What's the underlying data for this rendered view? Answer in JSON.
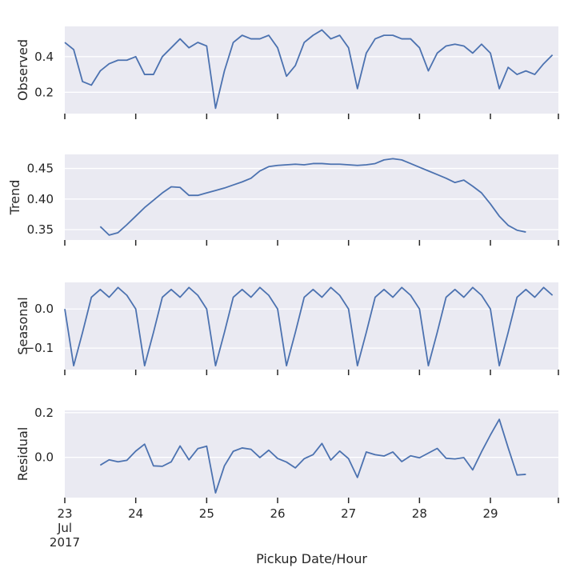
{
  "chart_data": [
    {
      "type": "line",
      "y_label": "Observed",
      "x": [
        "2017-07-23T00:00",
        "2017-07-23T03:00",
        "2017-07-23T06:00",
        "2017-07-23T09:00",
        "2017-07-23T12:00",
        "2017-07-23T15:00",
        "2017-07-23T18:00",
        "2017-07-23T21:00",
        "2017-07-24T00:00",
        "2017-07-24T03:00",
        "2017-07-24T06:00",
        "2017-07-24T09:00",
        "2017-07-24T12:00",
        "2017-07-24T15:00",
        "2017-07-24T18:00",
        "2017-07-24T21:00",
        "2017-07-25T00:00",
        "2017-07-25T03:00",
        "2017-07-25T06:00",
        "2017-07-25T09:00",
        "2017-07-25T12:00",
        "2017-07-25T15:00",
        "2017-07-25T18:00",
        "2017-07-25T21:00",
        "2017-07-26T00:00",
        "2017-07-26T03:00",
        "2017-07-26T06:00",
        "2017-07-26T09:00",
        "2017-07-26T12:00",
        "2017-07-26T15:00",
        "2017-07-26T18:00",
        "2017-07-26T21:00",
        "2017-07-27T00:00",
        "2017-07-27T03:00",
        "2017-07-27T06:00",
        "2017-07-27T09:00",
        "2017-07-27T12:00",
        "2017-07-27T15:00",
        "2017-07-27T18:00",
        "2017-07-27T21:00",
        "2017-07-28T00:00",
        "2017-07-28T03:00",
        "2017-07-28T06:00",
        "2017-07-28T09:00",
        "2017-07-28T12:00",
        "2017-07-28T15:00",
        "2017-07-28T18:00",
        "2017-07-28T21:00",
        "2017-07-29T00:00",
        "2017-07-29T03:00",
        "2017-07-29T06:00",
        "2017-07-29T09:00",
        "2017-07-29T12:00",
        "2017-07-29T15:00",
        "2017-07-29T18:00",
        "2017-07-29T21:00"
      ],
      "values": [
        0.48,
        0.44,
        0.26,
        0.24,
        0.32,
        0.36,
        0.38,
        0.38,
        0.4,
        0.3,
        0.3,
        0.4,
        0.45,
        0.5,
        0.45,
        0.48,
        0.46,
        0.11,
        0.32,
        0.48,
        0.52,
        0.5,
        0.5,
        0.52,
        0.45,
        0.29,
        0.35,
        0.48,
        0.52,
        0.55,
        0.5,
        0.52,
        0.45,
        0.22,
        0.42,
        0.5,
        0.52,
        0.52,
        0.5,
        0.5,
        0.45,
        0.32,
        0.42,
        0.46,
        0.47,
        0.46,
        0.42,
        0.47,
        0.42,
        0.22,
        0.34,
        0.3,
        0.32,
        0.3,
        0.36,
        0.41
      ],
      "color": "#4c72b0",
      "xlim": [
        "2017-07-23T00:00",
        "2017-07-29T23:00"
      ],
      "ylim": [
        0.08,
        0.57
      ],
      "yticks": [
        0.2,
        0.4
      ],
      "grid": true
    },
    {
      "type": "line",
      "y_label": "Trend",
      "x": [
        "2017-07-23T00:00",
        "2017-07-23T03:00",
        "2017-07-23T06:00",
        "2017-07-23T09:00",
        "2017-07-23T12:00",
        "2017-07-23T15:00",
        "2017-07-23T18:00",
        "2017-07-23T21:00",
        "2017-07-24T00:00",
        "2017-07-24T03:00",
        "2017-07-24T06:00",
        "2017-07-24T09:00",
        "2017-07-24T12:00",
        "2017-07-24T15:00",
        "2017-07-24T18:00",
        "2017-07-24T21:00",
        "2017-07-25T00:00",
        "2017-07-25T03:00",
        "2017-07-25T06:00",
        "2017-07-25T09:00",
        "2017-07-25T12:00",
        "2017-07-25T15:00",
        "2017-07-25T18:00",
        "2017-07-25T21:00",
        "2017-07-26T00:00",
        "2017-07-26T03:00",
        "2017-07-26T06:00",
        "2017-07-26T09:00",
        "2017-07-26T12:00",
        "2017-07-26T15:00",
        "2017-07-26T18:00",
        "2017-07-26T21:00",
        "2017-07-27T00:00",
        "2017-07-27T03:00",
        "2017-07-27T06:00",
        "2017-07-27T09:00",
        "2017-07-27T12:00",
        "2017-07-27T15:00",
        "2017-07-27T18:00",
        "2017-07-27T21:00",
        "2017-07-28T00:00",
        "2017-07-28T03:00",
        "2017-07-28T06:00",
        "2017-07-28T09:00",
        "2017-07-28T12:00",
        "2017-07-28T15:00",
        "2017-07-28T18:00",
        "2017-07-28T21:00",
        "2017-07-29T00:00",
        "2017-07-29T03:00",
        "2017-07-29T06:00",
        "2017-07-29T09:00",
        "2017-07-29T12:00",
        "2017-07-29T15:00",
        "2017-07-29T18:00",
        "2017-07-29T21:00"
      ],
      "values": [
        null,
        null,
        null,
        null,
        0.355,
        0.341,
        0.345,
        0.358,
        0.372,
        0.386,
        0.398,
        0.41,
        0.42,
        0.419,
        0.406,
        0.406,
        0.41,
        0.414,
        0.418,
        0.423,
        0.428,
        0.434,
        0.446,
        0.453,
        0.455,
        0.456,
        0.457,
        0.456,
        0.458,
        0.458,
        0.457,
        0.457,
        0.456,
        0.455,
        0.456,
        0.458,
        0.464,
        0.466,
        0.464,
        0.458,
        0.452,
        0.446,
        0.44,
        0.434,
        0.427,
        0.431,
        0.421,
        0.41,
        0.392,
        0.372,
        0.357,
        0.349,
        0.346,
        null,
        null,
        null
      ],
      "color": "#4c72b0",
      "xlim": [
        "2017-07-23T00:00",
        "2017-07-29T23:00"
      ],
      "ylim": [
        0.333,
        0.473
      ],
      "yticks": [
        0.35,
        {
          "value": 0.4,
          "label": "0.40"
        },
        0.45
      ],
      "grid": true
    },
    {
      "type": "line",
      "y_label": "Seasonal",
      "x": [
        "2017-07-23T00:00",
        "2017-07-23T03:00",
        "2017-07-23T06:00",
        "2017-07-23T09:00",
        "2017-07-23T12:00",
        "2017-07-23T15:00",
        "2017-07-23T18:00",
        "2017-07-23T21:00",
        "2017-07-24T00:00",
        "2017-07-24T03:00",
        "2017-07-24T06:00",
        "2017-07-24T09:00",
        "2017-07-24T12:00",
        "2017-07-24T15:00",
        "2017-07-24T18:00",
        "2017-07-24T21:00",
        "2017-07-25T00:00",
        "2017-07-25T03:00",
        "2017-07-25T06:00",
        "2017-07-25T09:00",
        "2017-07-25T12:00",
        "2017-07-25T15:00",
        "2017-07-25T18:00",
        "2017-07-25T21:00",
        "2017-07-26T00:00",
        "2017-07-26T03:00",
        "2017-07-26T06:00",
        "2017-07-26T09:00",
        "2017-07-26T12:00",
        "2017-07-26T15:00",
        "2017-07-26T18:00",
        "2017-07-26T21:00",
        "2017-07-27T00:00",
        "2017-07-27T03:00",
        "2017-07-27T06:00",
        "2017-07-27T09:00",
        "2017-07-27T12:00",
        "2017-07-27T15:00",
        "2017-07-27T18:00",
        "2017-07-27T21:00",
        "2017-07-28T00:00",
        "2017-07-28T03:00",
        "2017-07-28T06:00",
        "2017-07-28T09:00",
        "2017-07-28T12:00",
        "2017-07-28T15:00",
        "2017-07-28T18:00",
        "2017-07-28T21:00",
        "2017-07-29T00:00",
        "2017-07-29T03:00",
        "2017-07-29T06:00",
        "2017-07-29T09:00",
        "2017-07-29T12:00",
        "2017-07-29T15:00",
        "2017-07-29T18:00",
        "2017-07-29T21:00"
      ],
      "values": [
        0.0,
        -0.145,
        -0.06,
        0.03,
        0.05,
        0.03,
        0.055,
        0.035,
        0.0,
        -0.145,
        -0.06,
        0.03,
        0.05,
        0.03,
        0.055,
        0.035,
        0.0,
        -0.145,
        -0.06,
        0.03,
        0.05,
        0.03,
        0.055,
        0.035,
        0.0,
        -0.145,
        -0.06,
        0.03,
        0.05,
        0.03,
        0.055,
        0.035,
        0.0,
        -0.145,
        -0.06,
        0.03,
        0.05,
        0.03,
        0.055,
        0.035,
        0.0,
        -0.145,
        -0.06,
        0.03,
        0.05,
        0.03,
        0.055,
        0.035,
        0.0,
        -0.145,
        -0.06,
        0.03,
        0.05,
        0.03,
        0.055,
        0.035
      ],
      "color": "#4c72b0",
      "xlim": [
        "2017-07-23T00:00",
        "2017-07-29T23:00"
      ],
      "ylim": [
        -0.155,
        0.068
      ],
      "yticks": [
        {
          "value": -0.1,
          "label": "−0.1"
        },
        {
          "value": 0,
          "label": "0.0"
        }
      ],
      "grid": true
    },
    {
      "type": "line",
      "y_label": "Residual",
      "x_label": "Pickup Date/Hour",
      "x": [
        "2017-07-23T00:00",
        "2017-07-23T03:00",
        "2017-07-23T06:00",
        "2017-07-23T09:00",
        "2017-07-23T12:00",
        "2017-07-23T15:00",
        "2017-07-23T18:00",
        "2017-07-23T21:00",
        "2017-07-24T00:00",
        "2017-07-24T03:00",
        "2017-07-24T06:00",
        "2017-07-24T09:00",
        "2017-07-24T12:00",
        "2017-07-24T15:00",
        "2017-07-24T18:00",
        "2017-07-24T21:00",
        "2017-07-25T00:00",
        "2017-07-25T03:00",
        "2017-07-25T06:00",
        "2017-07-25T09:00",
        "2017-07-25T12:00",
        "2017-07-25T15:00",
        "2017-07-25T18:00",
        "2017-07-25T21:00",
        "2017-07-26T00:00",
        "2017-07-26T03:00",
        "2017-07-26T06:00",
        "2017-07-26T09:00",
        "2017-07-26T12:00",
        "2017-07-26T15:00",
        "2017-07-26T18:00",
        "2017-07-26T21:00",
        "2017-07-27T00:00",
        "2017-07-27T03:00",
        "2017-07-27T06:00",
        "2017-07-27T09:00",
        "2017-07-27T12:00",
        "2017-07-27T15:00",
        "2017-07-27T18:00",
        "2017-07-27T21:00",
        "2017-07-28T00:00",
        "2017-07-28T03:00",
        "2017-07-28T06:00",
        "2017-07-28T09:00",
        "2017-07-28T12:00",
        "2017-07-28T15:00",
        "2017-07-28T18:00",
        "2017-07-28T21:00",
        "2017-07-29T00:00",
        "2017-07-29T03:00",
        "2017-07-29T06:00",
        "2017-07-29T09:00",
        "2017-07-29T12:00",
        "2017-07-29T15:00",
        "2017-07-29T18:00",
        "2017-07-29T21:00"
      ],
      "values": [
        null,
        null,
        null,
        null,
        -0.035,
        -0.011,
        -0.02,
        -0.013,
        0.028,
        0.059,
        -0.038,
        -0.04,
        -0.02,
        0.051,
        -0.011,
        0.039,
        0.05,
        -0.159,
        -0.038,
        0.027,
        0.042,
        0.036,
        -0.001,
        0.032,
        -0.005,
        -0.021,
        -0.047,
        -0.006,
        0.012,
        0.062,
        -0.012,
        0.028,
        -0.006,
        -0.09,
        0.024,
        0.012,
        0.006,
        0.024,
        -0.019,
        0.007,
        -0.002,
        0.019,
        0.04,
        -0.004,
        -0.007,
        -0.001,
        -0.056,
        0.025,
        0.1,
        0.17,
        0.043,
        -0.079,
        -0.076,
        null,
        null,
        null
      ],
      "color": "#4c72b0",
      "xlim": [
        "2017-07-23T00:00",
        "2017-07-29T23:00"
      ],
      "ylim": [
        -0.18,
        0.21
      ],
      "yticks": [
        {
          "value": 0,
          "label": "0.0"
        },
        0.2
      ],
      "grid": true,
      "xticks": [
        {
          "value": "2017-07-23T00:00",
          "label": "23\nJul\n2017"
        },
        {
          "value": "2017-07-24T00:00",
          "label": "24"
        },
        {
          "value": "2017-07-25T00:00",
          "label": "25"
        },
        {
          "value": "2017-07-26T00:00",
          "label": "26"
        },
        {
          "value": "2017-07-27T00:00",
          "label": "27"
        },
        {
          "value": "2017-07-28T00:00",
          "label": "28"
        },
        {
          "value": "2017-07-29T00:00",
          "label": "29"
        }
      ]
    }
  ]
}
